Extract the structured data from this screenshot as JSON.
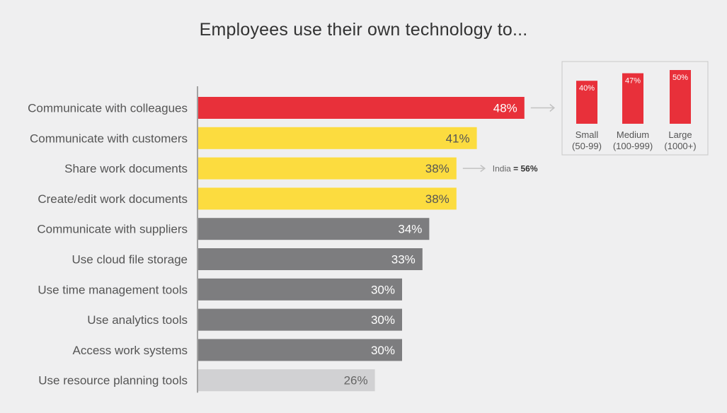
{
  "chart_data": [
    {
      "type": "bar",
      "orientation": "horizontal",
      "title": "Employees use their own technology to...",
      "categories": [
        "Communicate with colleagues",
        "Communicate with customers",
        "Share work documents",
        "Create/edit work documents",
        "Communicate with suppliers",
        "Use cloud file storage",
        "Use time management tools",
        "Use analytics tools",
        "Access work systems",
        "Use resource planning tools"
      ],
      "values": [
        48,
        41,
        38,
        38,
        34,
        33,
        30,
        30,
        30,
        26
      ],
      "value_labels": [
        "48%",
        "41%",
        "38%",
        "38%",
        "34%",
        "33%",
        "30%",
        "30%",
        "30%",
        "26%"
      ],
      "bar_colors": [
        "#e8303a",
        "#fcdc3f",
        "#fcdc3f",
        "#fcdc3f",
        "#7d7d7f",
        "#7d7d7f",
        "#7d7d7f",
        "#7d7d7f",
        "#7d7d7f",
        "#d1d1d3"
      ],
      "label_colors": [
        "#ffffff",
        "#555555",
        "#555555",
        "#555555",
        "#ffffff",
        "#ffffff",
        "#ffffff",
        "#ffffff",
        "#ffffff",
        "#666666"
      ],
      "xlim": [
        0,
        100
      ],
      "grid": false,
      "legend": "none"
    },
    {
      "type": "bar",
      "orientation": "vertical",
      "categories": [
        "Small",
        "Medium",
        "Large"
      ],
      "category_sublabels": [
        "(50-99)",
        "(100-999)",
        "(1000+)"
      ],
      "values": [
        40,
        47,
        50
      ],
      "value_labels": [
        "40%",
        "47%",
        "50%"
      ],
      "bar_color": "#e8303a",
      "ylim": [
        0,
        55
      ],
      "placement": "top-right"
    }
  ],
  "annotation": {
    "prefix": "India",
    "value": "= 56%"
  },
  "colors": {
    "background": "#efeff0",
    "red": "#e8303a",
    "yellow": "#fcdc3f",
    "gray": "#7d7d7f",
    "light_gray": "#d1d1d3"
  }
}
